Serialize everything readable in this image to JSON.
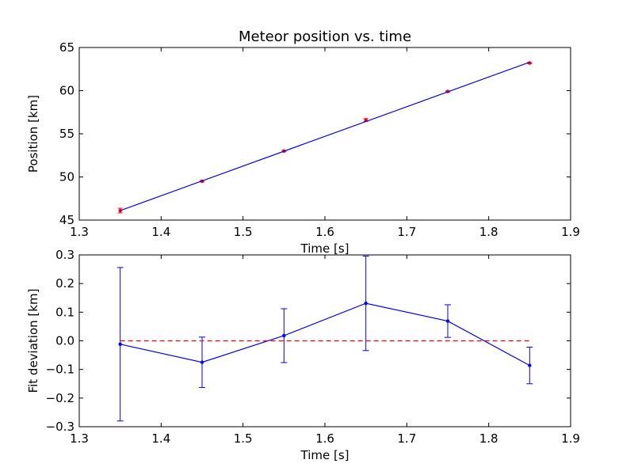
{
  "chart_data": [
    {
      "type": "scatter",
      "title": "Meteor position vs. time",
      "xlabel": "Time [s]",
      "ylabel": "Position [km]",
      "xlim": [
        1.3,
        1.9
      ],
      "ylim": [
        45,
        65
      ],
      "xticks": [
        "1.3",
        "1.4",
        "1.5",
        "1.6",
        "1.7",
        "1.8",
        "1.9"
      ],
      "yticks": [
        "45",
        "50",
        "55",
        "60",
        "65"
      ],
      "series": [
        {
          "kind": "points-with-errorbars",
          "color": "#ff0000",
          "x": [
            1.35,
            1.45,
            1.55,
            1.65,
            1.75,
            1.85
          ],
          "y": [
            46.1,
            49.5,
            53.0,
            56.6,
            59.9,
            63.2
          ],
          "yerr": [
            0.27,
            0.09,
            0.09,
            0.16,
            0.06,
            0.07
          ]
        },
        {
          "kind": "fit-line",
          "color": "#0000ff",
          "x": [
            1.35,
            1.85
          ],
          "y": [
            46.1,
            63.3
          ]
        }
      ]
    },
    {
      "type": "line",
      "title": "",
      "xlabel": "Time [s]",
      "ylabel": "Fit deviation [km]",
      "xlim": [
        1.3,
        1.9
      ],
      "ylim": [
        -0.3,
        0.3
      ],
      "xticks": [
        "1.3",
        "1.4",
        "1.5",
        "1.6",
        "1.7",
        "1.8",
        "1.9"
      ],
      "yticks": [
        "−0.3",
        "−0.2",
        "−0.1",
        "0.0",
        "0.1",
        "0.2",
        "0.3"
      ],
      "series": [
        {
          "kind": "line-with-errorbars",
          "color": "#0000ff",
          "x": [
            1.35,
            1.45,
            1.55,
            1.65,
            1.75,
            1.85
          ],
          "y": [
            -0.012,
            -0.075,
            0.018,
            0.131,
            0.069,
            -0.086
          ],
          "yerr": [
            0.268,
            0.088,
            0.094,
            0.165,
            0.057,
            0.064
          ]
        },
        {
          "kind": "reference-line",
          "color": "#ff0000",
          "dashed": true,
          "x": [
            1.35,
            1.85
          ],
          "y": [
            0.0,
            0.0
          ]
        }
      ]
    }
  ]
}
